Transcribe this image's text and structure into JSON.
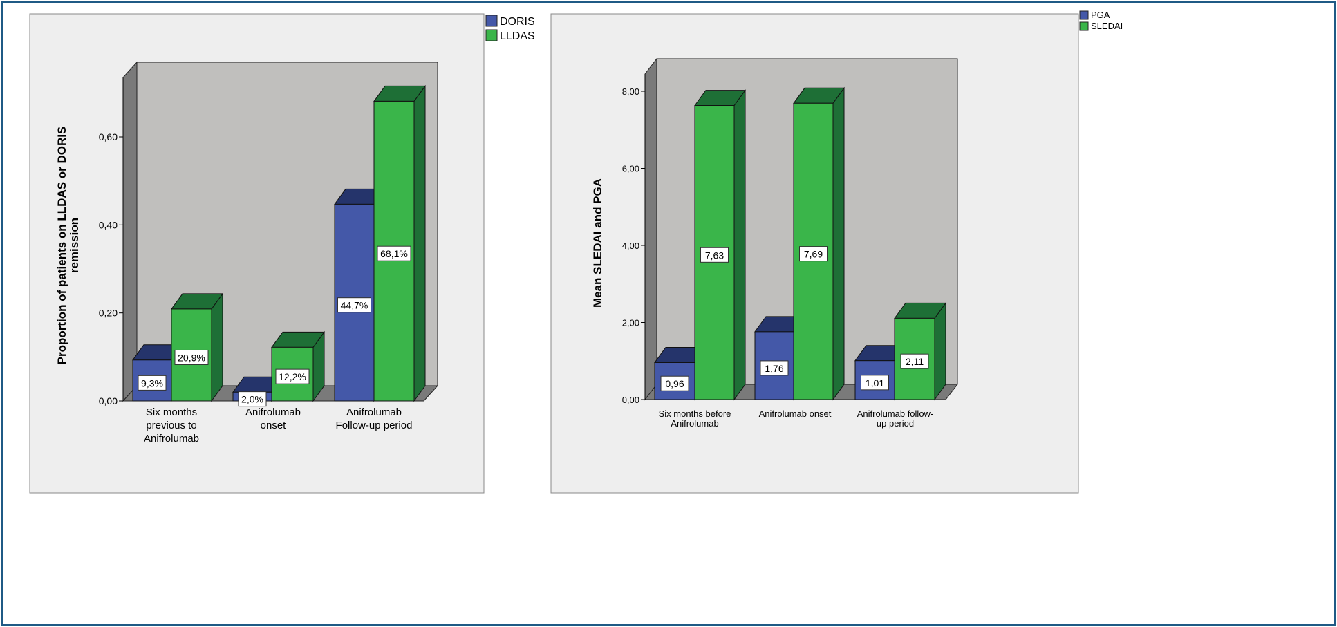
{
  "colors": {
    "series1": "#4458a8",
    "series1_top": "#25346b",
    "series2": "#3ab54a",
    "series2_top": "#1e6f36",
    "wall": "#c0bfbd",
    "side": "#7a7a7a",
    "panel": "#eeeeee"
  },
  "chart_data": [
    {
      "type": "bar",
      "title": "",
      "xlabel": "",
      "ylabel": "Proportion of patients on LLDAS or DORIS remission",
      "categories": [
        "Six months previous to Anifrolumab",
        "Anifrolumab onset",
        "Anifrolumab Follow-up period"
      ],
      "category_lines": [
        [
          "Six months",
          "previous to",
          "Anifrolumab"
        ],
        [
          "Anifrolumab",
          "onset"
        ],
        [
          "Anifrolumab",
          "Follow-up period"
        ]
      ],
      "series": [
        {
          "name": "DORIS",
          "values": [
            0.093,
            0.02,
            0.447
          ],
          "labels": [
            "9,3%",
            "2,0%",
            "44,7%"
          ]
        },
        {
          "name": "LLDAS",
          "values": [
            0.209,
            0.122,
            0.681
          ],
          "labels": [
            "20,9%",
            "12,2%",
            "68,1%"
          ]
        }
      ],
      "yticks": [
        "0,00",
        "0,20",
        "0,40",
        "0,60"
      ],
      "ytick_values": [
        0,
        0.2,
        0.4,
        0.6
      ],
      "ylim": [
        0,
        0.72
      ],
      "legend": "top-right"
    },
    {
      "type": "bar",
      "title": "",
      "xlabel": "",
      "ylabel": "Mean SLEDAI and PGA",
      "categories": [
        "Six months before Anifrolumab",
        "Anifrolumab onset",
        "Anifrolumab follow-up period"
      ],
      "category_lines": [
        [
          "Six months before",
          "Anifrolumab"
        ],
        [
          "Anifrolumab onset"
        ],
        [
          "Anifrolumab follow-",
          "up period"
        ]
      ],
      "series": [
        {
          "name": "PGA",
          "values": [
            0.96,
            1.76,
            1.01
          ],
          "labels": [
            "0,96",
            "1,76",
            "1,01"
          ]
        },
        {
          "name": "SLEDAI",
          "values": [
            7.63,
            7.69,
            2.11
          ],
          "labels": [
            "7,63",
            "7,69",
            "2,11"
          ]
        }
      ],
      "yticks": [
        "0,00",
        "2,00",
        "4,00",
        "6,00",
        "8,00"
      ],
      "ytick_values": [
        0,
        2,
        4,
        6,
        8
      ],
      "ylim": [
        0,
        8.5
      ],
      "legend": "top-right"
    }
  ]
}
